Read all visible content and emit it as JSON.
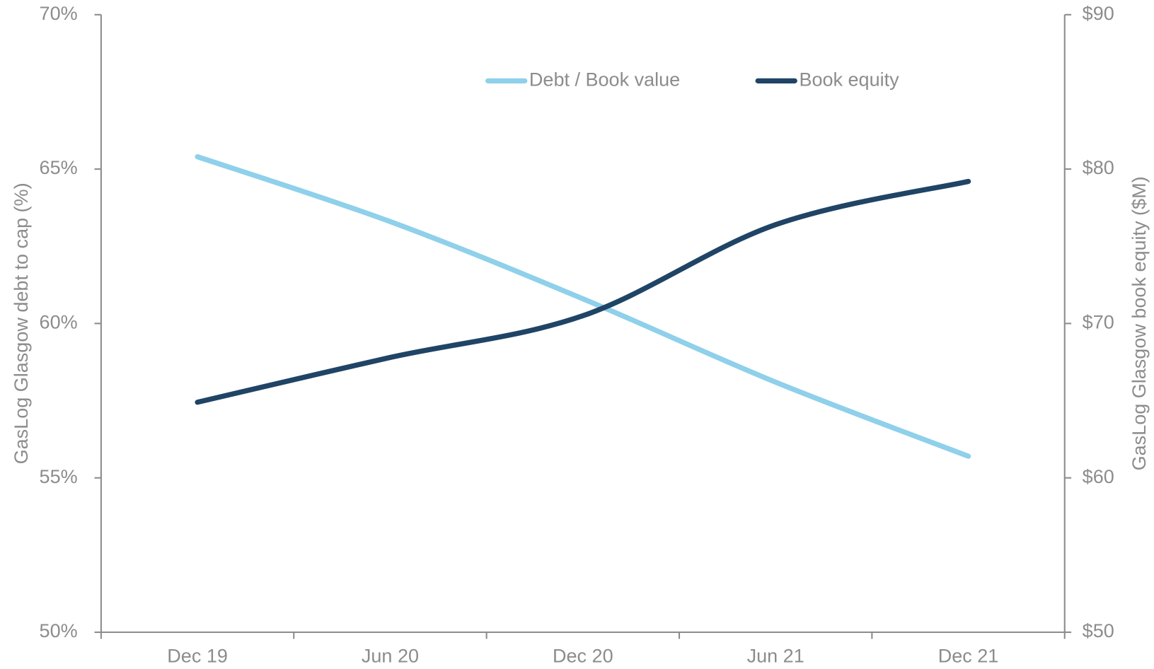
{
  "chart_data": {
    "type": "line",
    "categories": [
      "Dec 19",
      "Jun 20",
      "Dec 20",
      "Jun 21",
      "Dec 21"
    ],
    "ylabel": "GasLog Glasgow debt to cap (%)",
    "y2label": "GasLog Glasgow book equity ($M)",
    "ylim": [
      50,
      70
    ],
    "yticks": [
      {
        "value": 50,
        "label": "50%"
      },
      {
        "value": 55,
        "label": "55%"
      },
      {
        "value": 60,
        "label": "60%"
      },
      {
        "value": 65,
        "label": "65%"
      },
      {
        "value": 70,
        "label": "70%"
      }
    ],
    "y2lim": [
      50,
      90
    ],
    "y2ticks": [
      {
        "value": 50,
        "label": "$50"
      },
      {
        "value": 60,
        "label": "$60"
      },
      {
        "value": 70,
        "label": "$70"
      },
      {
        "value": 80,
        "label": "$80"
      },
      {
        "value": 90,
        "label": "$90"
      }
    ],
    "legend": "top",
    "series": [
      {
        "name": "Debt / Book value",
        "color": "#8fd0ea",
        "values": [
          65.4,
          63.3,
          60.8,
          58.1,
          55.7
        ]
      },
      {
        "name": "Book equity",
        "color": "#1f4466",
        "axis": "y2",
        "values": [
          64.9,
          67.8,
          70.5,
          76.4,
          79.2
        ]
      }
    ]
  }
}
